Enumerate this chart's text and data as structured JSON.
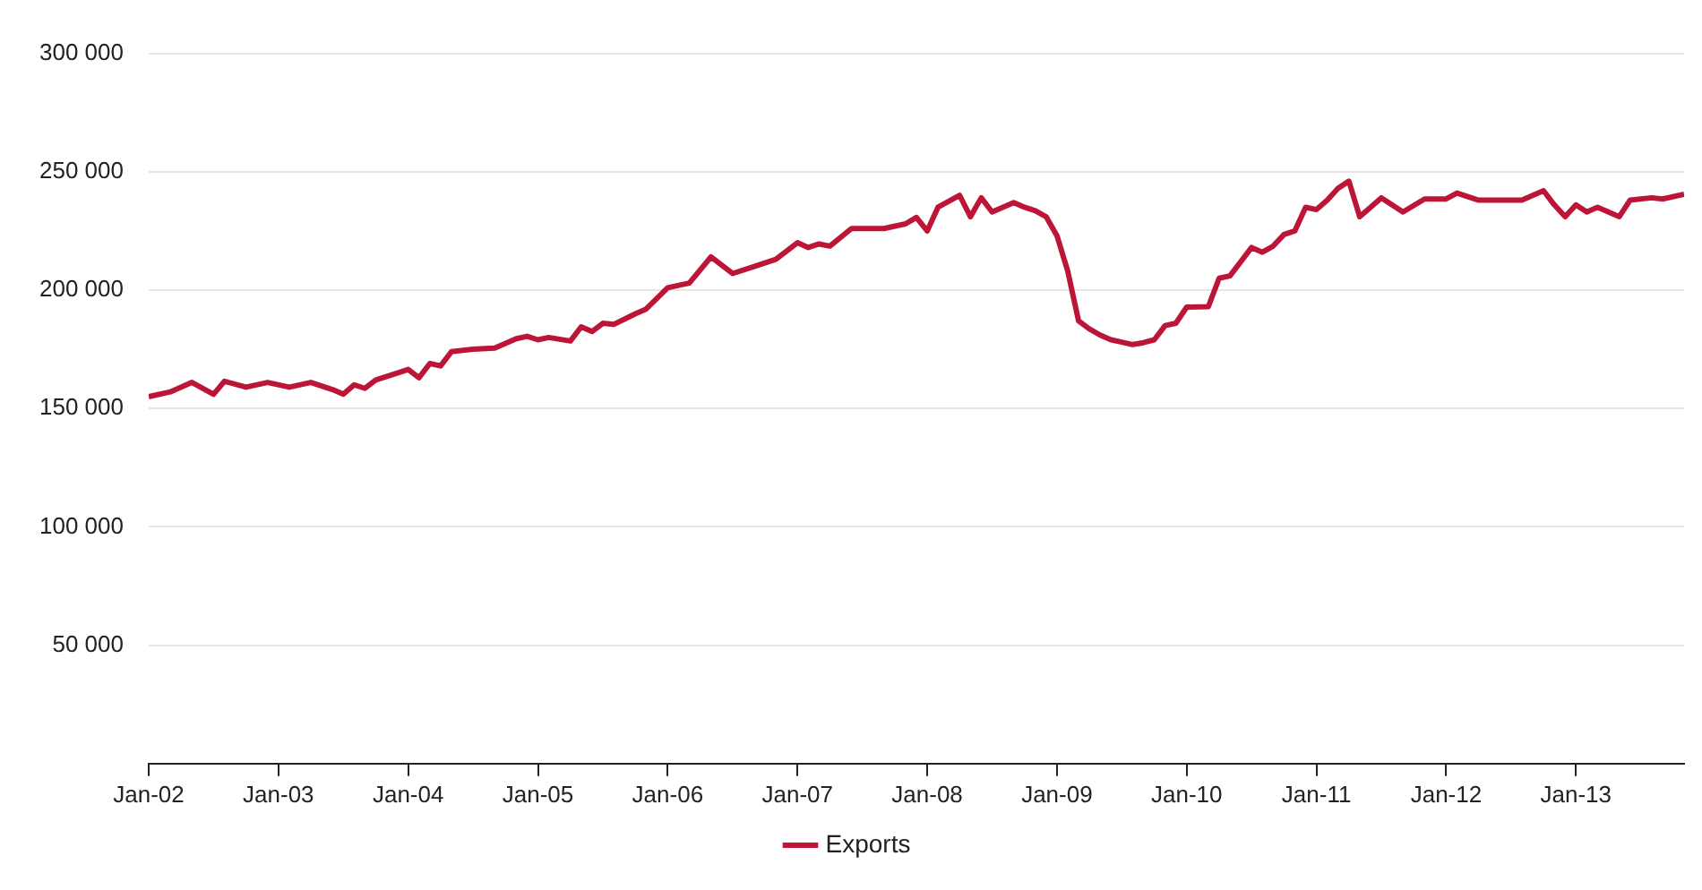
{
  "chart_data": {
    "type": "line",
    "x": [
      "2002-01",
      "2002-03",
      "2002-05",
      "2002-07",
      "2002-08",
      "2002-10",
      "2002-12",
      "2003-02",
      "2003-04",
      "2003-06",
      "2003-07",
      "2003-08",
      "2003-09",
      "2003-10",
      "2003-12",
      "2004-01",
      "2004-02",
      "2004-03",
      "2004-04",
      "2004-05",
      "2004-07",
      "2004-09",
      "2004-11",
      "2004-12",
      "2005-01",
      "2005-02",
      "2005-04",
      "2005-05",
      "2005-06",
      "2005-07",
      "2005-08",
      "2005-10",
      "2005-11",
      "2006-01",
      "2006-03",
      "2006-05",
      "2006-07",
      "2006-09",
      "2006-11",
      "2007-01",
      "2007-02",
      "2007-03",
      "2007-04",
      "2007-06",
      "2007-09",
      "2007-11",
      "2007-12",
      "2008-01",
      "2008-02",
      "2008-04",
      "2008-05",
      "2008-06",
      "2008-07",
      "2008-09",
      "2008-10",
      "2008-11",
      "2008-12",
      "2009-01",
      "2009-02",
      "2009-03",
      "2009-04",
      "2009-05",
      "2009-06",
      "2009-07",
      "2009-08",
      "2009-09",
      "2009-10",
      "2009-11",
      "2009-12",
      "2010-01",
      "2010-03",
      "2010-04",
      "2010-05",
      "2010-07",
      "2010-08",
      "2010-09",
      "2010-10",
      "2010-11",
      "2010-12",
      "2011-01",
      "2011-02",
      "2011-03",
      "2011-04",
      "2011-05",
      "2011-07",
      "2011-09",
      "2011-11",
      "2012-01",
      "2012-02",
      "2012-04",
      "2012-06",
      "2012-08",
      "2012-10",
      "2012-11",
      "2012-12",
      "2013-01",
      "2013-02",
      "2013-03",
      "2013-05",
      "2013-06",
      "2013-08",
      "2013-09",
      "2013-11"
    ],
    "series": [
      {
        "name": "Exports",
        "color": "#bd1538",
        "values": [
          155000,
          157000,
          161000,
          156000,
          161500,
          159000,
          161000,
          159000,
          161000,
          158000,
          156000,
          160000,
          158500,
          162000,
          165000,
          166500,
          163000,
          169000,
          168000,
          174000,
          175000,
          175500,
          179500,
          180500,
          179000,
          180000,
          178500,
          184500,
          182500,
          186000,
          185500,
          190000,
          192000,
          201000,
          203000,
          214000,
          207000,
          210000,
          213000,
          220000,
          218000,
          219500,
          218600,
          226000,
          226000,
          228000,
          230700,
          225000,
          235000,
          240000,
          231000,
          239000,
          233000,
          237000,
          235000,
          233500,
          231000,
          223000,
          208000,
          187000,
          183600,
          181000,
          179000,
          178000,
          177000,
          177800,
          179000,
          185000,
          186000,
          192800,
          193000,
          205000,
          206000,
          218000,
          216000,
          218600,
          223500,
          225000,
          235000,
          234000,
          238000,
          243000,
          246000,
          231000,
          239000,
          233000,
          238500,
          238500,
          241000,
          238000,
          238000,
          238000,
          242000,
          236000,
          231000,
          236000,
          233000,
          235000,
          231000,
          238000,
          239000,
          238500,
          240500
        ]
      }
    ],
    "xlim": [
      "2002-01",
      "2013-11"
    ],
    "xticks": [
      {
        "value": "2002-01",
        "label": "Jan-02"
      },
      {
        "value": "2003-01",
        "label": "Jan-03"
      },
      {
        "value": "2004-01",
        "label": "Jan-04"
      },
      {
        "value": "2005-01",
        "label": "Jan-05"
      },
      {
        "value": "2006-01",
        "label": "Jan-06"
      },
      {
        "value": "2007-01",
        "label": "Jan-07"
      },
      {
        "value": "2008-01",
        "label": "Jan-08"
      },
      {
        "value": "2009-01",
        "label": "Jan-09"
      },
      {
        "value": "2010-01",
        "label": "Jan-10"
      },
      {
        "value": "2011-01",
        "label": "Jan-11"
      },
      {
        "value": "2012-01",
        "label": "Jan-12"
      },
      {
        "value": "2013-01",
        "label": "Jan-13"
      }
    ],
    "ylim": [
      0,
      300000
    ],
    "yticks": [
      {
        "value": 50000,
        "label": "50 000"
      },
      {
        "value": 100000,
        "label": "100 000"
      },
      {
        "value": 150000,
        "label": "150 000"
      },
      {
        "value": 200000,
        "label": "200 000"
      },
      {
        "value": 250000,
        "label": "250 000"
      },
      {
        "value": 300000,
        "label": "300 000"
      }
    ],
    "grid": "y",
    "legend": "bottom",
    "marker": "none",
    "line_style": "solid"
  }
}
